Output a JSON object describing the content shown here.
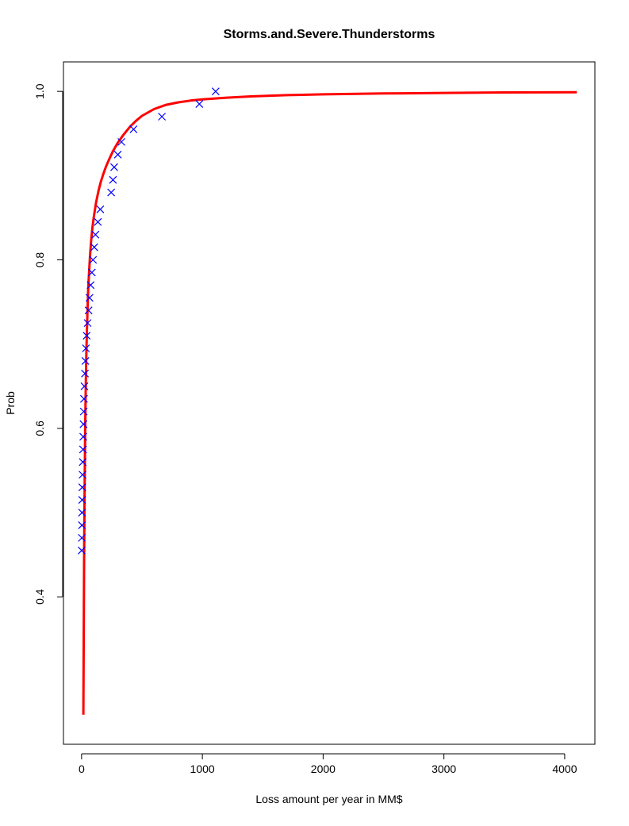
{
  "chart_data": {
    "type": "scatter",
    "title": "Storms.and.Severe.Thunderstorms",
    "xlabel": "Loss amount per year in MM$",
    "ylabel": "Prob",
    "xlim": [
      -150,
      4250
    ],
    "ylim": [
      0.225,
      1.035
    ],
    "x_ticks": [
      0,
      1000,
      2000,
      3000,
      4000
    ],
    "x_tick_labels": [
      "0",
      "1000",
      "2000",
      "3000",
      "4000"
    ],
    "y_ticks": [
      0.4,
      0.6,
      0.8,
      1.0
    ],
    "y_tick_labels": [
      "0.4",
      "0.6",
      "0.8",
      "1.0"
    ],
    "grid": false,
    "series": [
      {
        "kind": "fitted-curve",
        "color": "#ff0000",
        "x": [
          15,
          18,
          21,
          24,
          27,
          30,
          33,
          36,
          40,
          45,
          50,
          55,
          60,
          70,
          80,
          90,
          100,
          120,
          140,
          160,
          180,
          200,
          230,
          260,
          300,
          350,
          400,
          450,
          500,
          600,
          700,
          800,
          900,
          1000,
          1200,
          1400,
          1700,
          2000,
          2500,
          3000,
          3500,
          4100
        ],
        "y": [
          0.26,
          0.36,
          0.44,
          0.51,
          0.56,
          0.6,
          0.635,
          0.66,
          0.69,
          0.72,
          0.745,
          0.765,
          0.78,
          0.805,
          0.824,
          0.838,
          0.85,
          0.868,
          0.882,
          0.893,
          0.902,
          0.91,
          0.92,
          0.929,
          0.939,
          0.949,
          0.958,
          0.965,
          0.971,
          0.979,
          0.984,
          0.987,
          0.989,
          0.9905,
          0.9925,
          0.994,
          0.9955,
          0.9965,
          0.9975,
          0.9982,
          0.9987,
          0.999
        ]
      },
      {
        "kind": "empirical-points",
        "color": "#0000ff",
        "x": [
          1,
          2,
          3,
          4,
          5,
          6,
          8,
          10,
          12,
          14,
          16,
          18,
          20,
          24,
          28,
          32,
          36,
          42,
          50,
          58,
          66,
          75,
          85,
          95,
          105,
          115,
          135,
          155,
          245,
          260,
          270,
          300,
          330,
          430,
          665,
          975,
          1110
        ],
        "y": [
          0.455,
          0.47,
          0.485,
          0.5,
          0.515,
          0.53,
          0.545,
          0.56,
          0.575,
          0.59,
          0.605,
          0.62,
          0.635,
          0.65,
          0.665,
          0.68,
          0.695,
          0.71,
          0.725,
          0.74,
          0.755,
          0.77,
          0.785,
          0.8,
          0.815,
          0.83,
          0.845,
          0.86,
          0.88,
          0.895,
          0.91,
          0.925,
          0.94,
          0.955,
          0.97,
          0.985,
          1.0
        ]
      }
    ]
  }
}
